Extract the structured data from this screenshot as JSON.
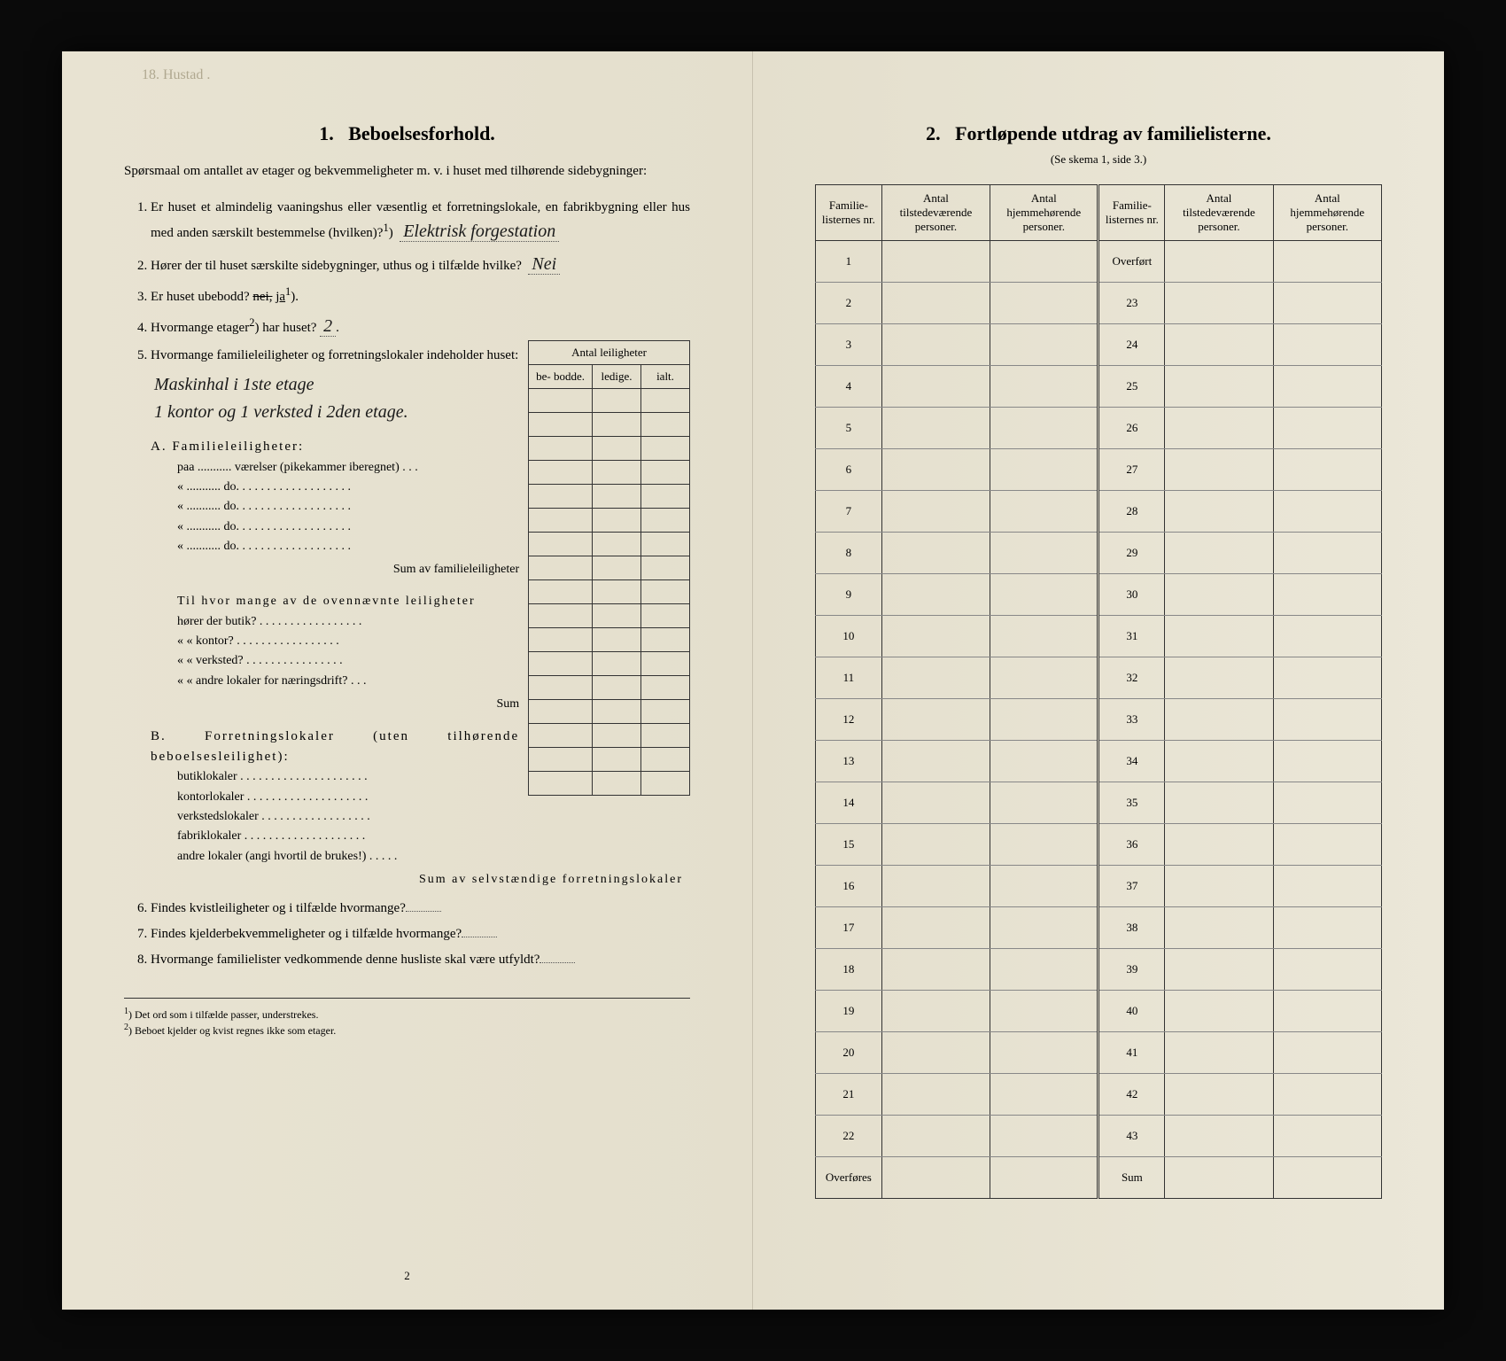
{
  "left": {
    "pencil_note": "18. Hustad .",
    "section_number": "1.",
    "section_title": "Beboelsesforhold.",
    "intro": "Spørsmaal om antallet av etager og bekvemmeligheter m. v. i huset med tilhørende sidebygninger:",
    "q1": "Er huset et almindelig vaaningshus eller væsentlig et forretningslokale, en fabrikbygning eller hus med anden særskilt bestemmelse (hvilken)?",
    "q1_sup": "1",
    "q1_answer": "Elektrisk forgestation",
    "q2": "Hører der til huset særskilte sidebygninger, uthus og i tilfælde hvilke?",
    "q2_answer": "Nei",
    "q3_prefix": "Er huset ubebodd?",
    "q3_struck": "nei,",
    "q3_underlined": "ja",
    "q3_sup": "1",
    "q4_prefix": "Hvormange etager",
    "q4_sup": "2",
    "q4_suffix": ") har huset?",
    "q4_answer": "2",
    "q5": "Hvormange familieleiligheter og forretningslokaler indeholder huset:",
    "q5_handwriting_line1": "Maskinhal i 1ste etage",
    "q5_handwriting_line2": "1 kontor og 1 verksted i 2den etage.",
    "apt_table_title": "Antal leiligheter",
    "apt_cols": [
      "be-\nbodde.",
      "ledige.",
      "ialt."
    ],
    "sectionA_title": "A. Familieleiligheter:",
    "sectionA_rows": [
      "paa ........... værelser (pikekammer iberegnet) . . .",
      "«   ...........   do.   . . . . . . . . . . . . . . . . . .",
      "«   ...........   do.   . . . . . . . . . . . . . . . . . .",
      "«   ...........   do.   . . . . . . . . . . . . . . . . . .",
      "«   ...........   do.   . . . . . . . . . . . . . . . . . ."
    ],
    "sumA": "Sum av familieleiligheter",
    "middle_block_intro": "Til hvor mange av de ovennævnte leiligheter",
    "middle_rows": [
      "hører der butik? . . . . . . . . . . . . . . . . .",
      "«     «   kontor? . . . . . . . . . . . . . . . . .",
      "«     «   verksted? . . . . . . . . . . . . . . . .",
      "«     «   andre lokaler for næringsdrift? . . ."
    ],
    "middle_sum": "Sum",
    "sectionB_title": "B. Forretningslokaler (uten tilhørende beboelsesleilighet):",
    "sectionB_rows": [
      "butiklokaler . . . . . . . . . . . . . . . . . . . . .",
      "kontorlokaler . . . . . . . . . . . . . . . . . . . .",
      "verkstedslokaler . . . . . . . . . . . . . . . . . .",
      "fabriklokaler . . . . . . . . . . . . . . . . . . . .",
      "andre lokaler (angi hvortil de brukes!) . . . . ."
    ],
    "sumB": "Sum av selvstændige forretningslokaler",
    "q6": "Findes kvistleiligheter og i tilfælde hvormange?",
    "q7": "Findes kjelderbekvemmeligheter og i tilfælde hvormange?",
    "q8": "Hvormange familielister vedkommende denne husliste skal være utfyldt?",
    "footnote1_num": "1",
    "footnote1": "Det ord som i tilfælde passer, understrekes.",
    "footnote2_num": "2",
    "footnote2": "Beboet kjelder og kvist regnes ikke som etager.",
    "page_number": "2"
  },
  "right": {
    "section_number": "2.",
    "section_title": "Fortløpende utdrag av familielisterne.",
    "subtitle": "(Se skema 1, side 3.)",
    "headers": [
      "Familie-\nlisternes\nnr.",
      "Antal\ntilstedeværende\npersoner.",
      "Antal\nhjemmehørende\npersoner.",
      "Familie-\nlisternes\nnr.",
      "Antal\ntilstedeværende\npersoner.",
      "Antal\nhjemmehørende\npersoner."
    ],
    "left_numbers": [
      "1",
      "2",
      "3",
      "4",
      "5",
      "6",
      "7",
      "8",
      "9",
      "10",
      "11",
      "12",
      "13",
      "14",
      "15",
      "16",
      "17",
      "18",
      "19",
      "20",
      "21",
      "22",
      "Overføres"
    ],
    "right_numbers": [
      "Overført",
      "23",
      "24",
      "25",
      "26",
      "27",
      "28",
      "29",
      "30",
      "31",
      "32",
      "33",
      "34",
      "35",
      "36",
      "37",
      "38",
      "39",
      "40",
      "41",
      "42",
      "43",
      "Sum"
    ]
  },
  "colors": {
    "paper": "#e8e4d4",
    "ink": "#1a1a1a",
    "border": "#333333"
  }
}
